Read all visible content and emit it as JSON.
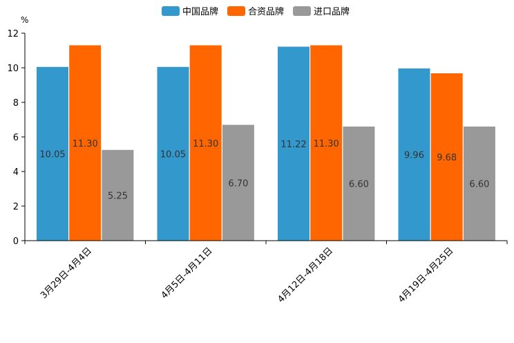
{
  "chart_data": {
    "type": "bar",
    "ylabel": "%",
    "ylim": [
      0,
      12
    ],
    "yticks": [
      0,
      2,
      4,
      6,
      8,
      10,
      12
    ],
    "grid": false,
    "legend_position": "top-center",
    "categories": [
      "3月29日-4月4日",
      "4月5日-4月11日",
      "4月12日-4月18日",
      "4月19日-4月25日"
    ],
    "series": [
      {
        "name": "中国品牌",
        "color": "#3399CC",
        "values": [
          10.05,
          10.05,
          11.22,
          9.96
        ],
        "labels": [
          "10.05",
          "10.05",
          "11.22",
          "9.96"
        ]
      },
      {
        "name": "合资品牌",
        "color": "#FF6600",
        "values": [
          11.3,
          11.3,
          11.3,
          9.68
        ],
        "labels": [
          "11.30",
          "11.30",
          "11.30",
          "9.68"
        ]
      },
      {
        "name": "进口品牌",
        "color": "#999999",
        "values": [
          5.25,
          6.7,
          6.6,
          6.6
        ],
        "labels": [
          "5.25",
          "6.70",
          "6.60",
          "6.60"
        ]
      }
    ]
  }
}
